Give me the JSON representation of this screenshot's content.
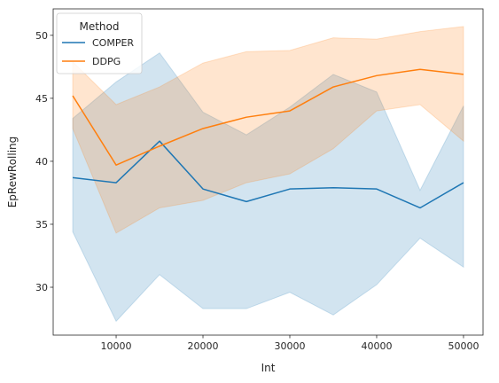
{
  "chart_data": {
    "type": "line",
    "xlabel": "Int",
    "ylabel": "EpRewRolling",
    "xlim": [
      2750,
      52250
    ],
    "ylim": [
      26.2,
      52.1
    ],
    "xticks": [
      10000,
      20000,
      30000,
      40000,
      50000
    ],
    "yticks": [
      30,
      35,
      40,
      45,
      50
    ],
    "grid": false,
    "legend": {
      "title": "Method",
      "placement": "top-left"
    },
    "x": [
      5000,
      10000,
      15000,
      20000,
      25000,
      30000,
      35000,
      40000,
      45000,
      50000
    ],
    "series": [
      {
        "name": "COMPER",
        "color": "#1f77b4",
        "values": [
          38.7,
          38.3,
          41.6,
          37.8,
          36.8,
          37.8,
          37.9,
          37.8,
          36.3,
          38.3
        ],
        "lower": [
          34.4,
          27.3,
          31.0,
          28.3,
          28.3,
          29.6,
          27.8,
          30.2,
          33.9,
          31.6
        ],
        "upper": [
          43.4,
          46.3,
          48.6,
          43.9,
          42.1,
          44.3,
          46.9,
          45.5,
          37.7,
          44.4
        ]
      },
      {
        "name": "DDPG",
        "color": "#ff7f0e",
        "values": [
          45.2,
          39.7,
          41.2,
          42.6,
          43.5,
          44.0,
          45.9,
          46.8,
          47.3,
          46.9
        ],
        "lower": [
          42.6,
          34.3,
          36.3,
          36.9,
          38.3,
          39.0,
          41.0,
          44.0,
          44.5,
          41.6
        ],
        "upper": [
          47.9,
          44.5,
          45.9,
          47.8,
          48.7,
          48.8,
          49.8,
          49.7,
          50.3,
          50.7
        ]
      }
    ]
  }
}
